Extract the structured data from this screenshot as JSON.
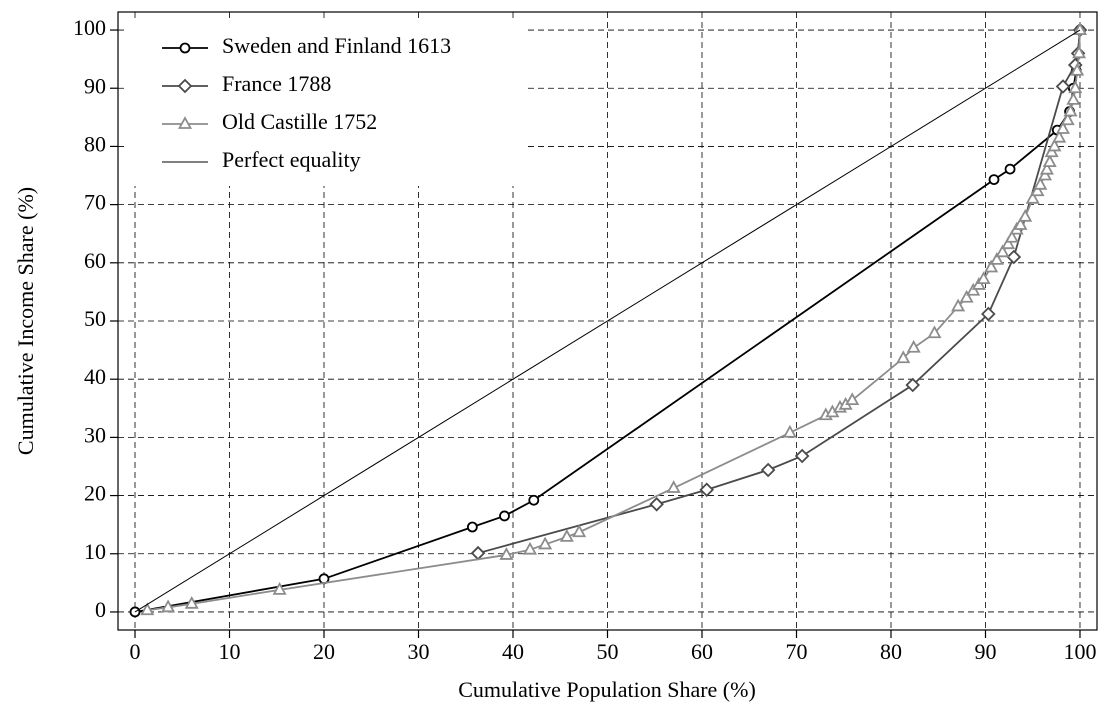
{
  "chart_data": {
    "type": "line",
    "x_label": "Cumulative Population Share (%)",
    "y_label": "Cumulative Income Share (%)",
    "xlim": [
      -1.8,
      101.8
    ],
    "ylim": [
      -3.1,
      103.1
    ],
    "xticks": [
      0,
      10,
      20,
      30,
      40,
      50,
      60,
      70,
      80,
      90,
      100
    ],
    "yticks": [
      0,
      10,
      20,
      30,
      40,
      50,
      60,
      70,
      80,
      90,
      100
    ],
    "grid": true,
    "legend": "upper left",
    "series": [
      {
        "name": "Sweden and Finland 1613",
        "color": "#000000",
        "marker": "circle",
        "x": [
          0,
          20,
          35.7,
          39.1,
          42.2,
          90.9,
          92.6,
          97.6,
          98.9,
          99.3,
          99.6,
          100
        ],
        "values": [
          0,
          5.7,
          14.6,
          16.5,
          19.2,
          74.3,
          76.1,
          82.8,
          86,
          90,
          93,
          100
        ]
      },
      {
        "name": "France 1788",
        "color": "#4a4a4a",
        "marker": "diamond",
        "x": [
          36.3,
          55.2,
          60.5,
          67,
          70.6,
          82.3,
          90.3,
          93,
          98.2,
          99.5,
          99.8,
          100
        ],
        "values": [
          10.1,
          18.5,
          21,
          24.4,
          26.8,
          39,
          51.2,
          61,
          90.3,
          94,
          96,
          100
        ]
      },
      {
        "name": "Old Castille 1752",
        "color": "#8c8c8c",
        "marker": "triangle",
        "x": [
          1.3,
          3.5,
          6,
          15.3,
          39.3,
          41.8,
          43.4,
          45.7,
          47,
          57,
          69.3,
          73.1,
          73.8,
          74.6,
          75.2,
          75.9,
          81.3,
          82.4,
          84.6,
          87.1,
          88,
          88.7,
          89.3,
          89.8,
          90.6,
          91.2,
          91.8,
          92.4,
          92.8,
          93.3,
          93.7,
          94.2,
          95,
          95.5,
          95.8,
          96.3,
          96.5,
          96.8,
          97,
          97.3,
          97.8,
          98.2,
          98.7,
          99,
          99.3,
          99.5,
          99.7,
          99.9,
          100
        ],
        "values": [
          0.3,
          0.8,
          1.4,
          3.8,
          9.8,
          10.7,
          11.6,
          12.9,
          13.7,
          21.3,
          30.8,
          33.8,
          34.3,
          35.1,
          35.6,
          36.4,
          43.6,
          45.4,
          47.9,
          52.5,
          54,
          55.2,
          56.2,
          57.2,
          59.2,
          60.5,
          61.8,
          63.2,
          64.3,
          65.7,
          66.5,
          67.9,
          71,
          72.3,
          73.4,
          75,
          76,
          77.3,
          79,
          80,
          81.5,
          83,
          84.5,
          86,
          88,
          90,
          93,
          96,
          100
        ]
      },
      {
        "name": "Perfect equality",
        "color": "#000000",
        "marker": "none",
        "x": [
          0,
          100
        ],
        "values": [
          0,
          100
        ]
      }
    ]
  }
}
